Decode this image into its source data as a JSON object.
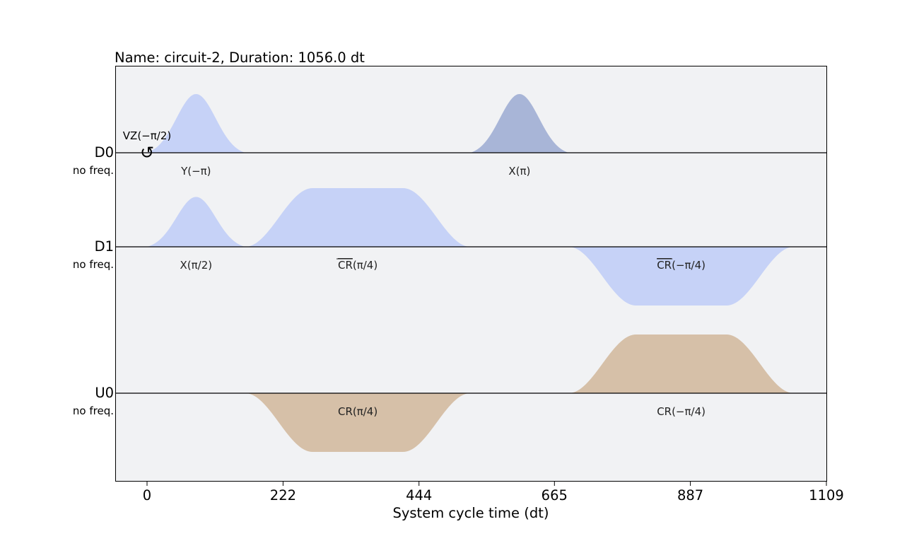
{
  "chart_data": {
    "type": "area",
    "title": "Name: circuit-2, Duration: 1056.0 dt",
    "xlabel": "System cycle time (dt)",
    "xlim": [
      -52,
      1109
    ],
    "xticks": [
      0,
      222,
      444,
      665,
      887,
      1109
    ],
    "channels": [
      {
        "name": "D0",
        "freq_label": "no freq.",
        "frame_changes": [
          {
            "t": 0,
            "label": "VZ(−π/2)",
            "symbol": "↺"
          }
        ],
        "pulses": [
          {
            "label": "Y(−π)",
            "start": 0,
            "duration": 160,
            "shape": "gaussian",
            "amplitude": 1.0,
            "color": "#c6d2f7"
          },
          {
            "label": "X(π)",
            "start": 528,
            "duration": 160,
            "shape": "gaussian",
            "amplitude": 1.0,
            "color": "#a8b5d7"
          }
        ]
      },
      {
        "name": "D1",
        "freq_label": "no freq.",
        "frame_changes": [],
        "pulses": [
          {
            "label": "X(π/2)",
            "start": 0,
            "duration": 160,
            "shape": "gaussian",
            "amplitude": 0.85,
            "color": "#c6d2f7"
          },
          {
            "label": "̅C̅R(π/4)",
            "label_bar": "CR",
            "label_rest": "(π/4)",
            "start": 160,
            "duration": 368,
            "shape": "gaussian_square",
            "amplitude": 1.0,
            "color": "#c6d2f7"
          },
          {
            "label": "̅C̅R(−π/4)",
            "label_bar": "CR",
            "label_rest": "(−π/4)",
            "start": 688,
            "duration": 368,
            "shape": "gaussian_square",
            "amplitude": -1.0,
            "color": "#c6d2f7"
          }
        ]
      },
      {
        "name": "U0",
        "freq_label": "no freq.",
        "frame_changes": [],
        "pulses": [
          {
            "label": "CR(π/4)",
            "start": 160,
            "duration": 368,
            "shape": "gaussian_square",
            "amplitude": -1.0,
            "color": "#d6c0a8"
          },
          {
            "label": "CR(−π/4)",
            "start": 688,
            "duration": 368,
            "shape": "gaussian_square",
            "amplitude": 1.0,
            "color": "#d6c0a8"
          }
        ]
      }
    ],
    "colors": {
      "background": "#f1f2f4",
      "drive": "#c6d2f7",
      "drive_dark": "#a8b5d7",
      "control": "#d6c0a8"
    }
  }
}
